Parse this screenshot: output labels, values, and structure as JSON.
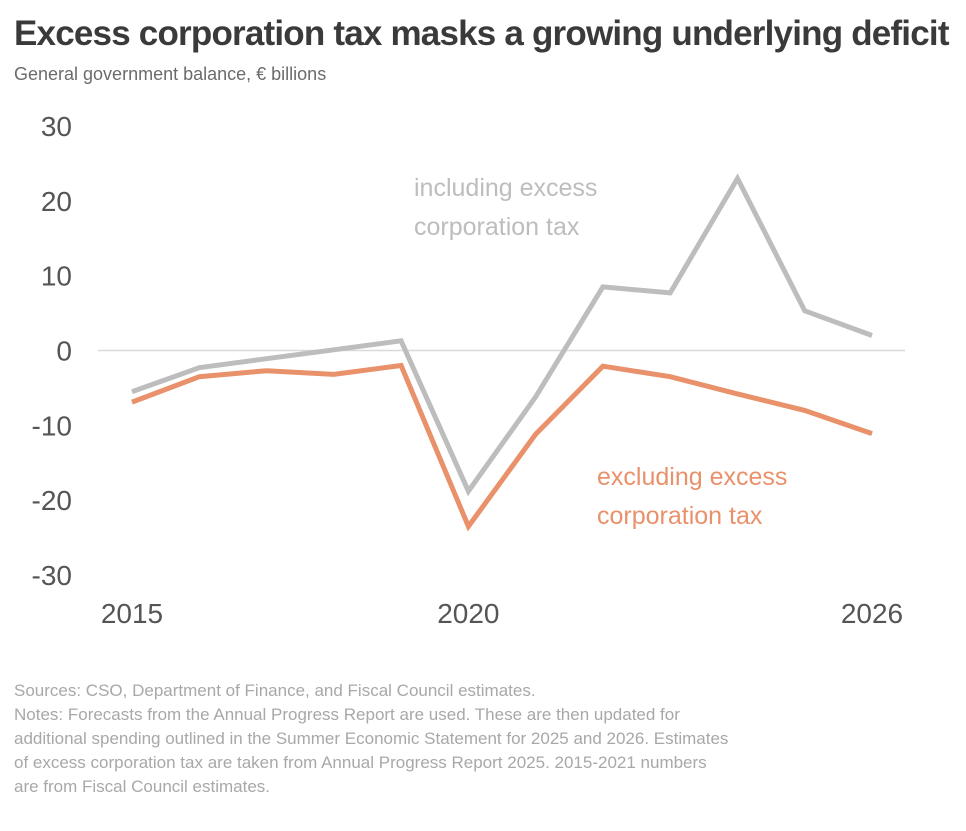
{
  "title": "Excess corporation tax masks a growing underlying deficit",
  "subtitle": "General government balance, € billions",
  "chart_data": {
    "type": "line",
    "title": "Excess corporation tax masks a growing underlying deficit",
    "ylabel": "General government balance, € billions",
    "xlabel": "",
    "x": [
      2015,
      2016,
      2017,
      2018,
      2019,
      2020,
      2021,
      2022,
      2023,
      2024,
      2025,
      2026
    ],
    "ylim": [
      -30,
      30
    ],
    "xlim": [
      2015,
      2026
    ],
    "y_ticks": [
      "30",
      "20",
      "10",
      "0",
      "-10",
      "-20",
      "-30"
    ],
    "x_ticks": [
      "2015",
      "2020",
      "2026"
    ],
    "zero_line": true,
    "grid": false,
    "series": [
      {
        "name": "including excess corporation tax",
        "label_lines": [
          "including excess",
          "corporation tax"
        ],
        "color": "#bdbdbd",
        "values": [
          -5.5,
          -2.3,
          -1.1,
          0.1,
          1.3,
          -18.8,
          -6.2,
          8.5,
          7.7,
          23.0,
          5.3,
          2.0
        ]
      },
      {
        "name": "excluding excess corporation tax",
        "label_lines": [
          "excluding excess",
          "corporation tax"
        ],
        "color": "#e8916a",
        "values": [
          -6.9,
          -3.5,
          -2.7,
          -3.2,
          -2.0,
          -23.5,
          -11.2,
          -2.1,
          -3.5,
          -5.8,
          -8.0,
          -11.1
        ]
      }
    ]
  },
  "footer": {
    "sources": "Sources: CSO, Department of Finance, and Fiscal Council estimates.",
    "notes_lines": [
      "Notes: Forecasts from the Annual Progress Report are used. These are then updated for",
      "additional spending outlined in the Summer Economic Statement for 2025 and 2026. Estimates",
      "of excess corporation tax are taken from Annual Progress Report 2025. 2015-2021 numbers",
      "are from Fiscal Council estimates."
    ]
  }
}
